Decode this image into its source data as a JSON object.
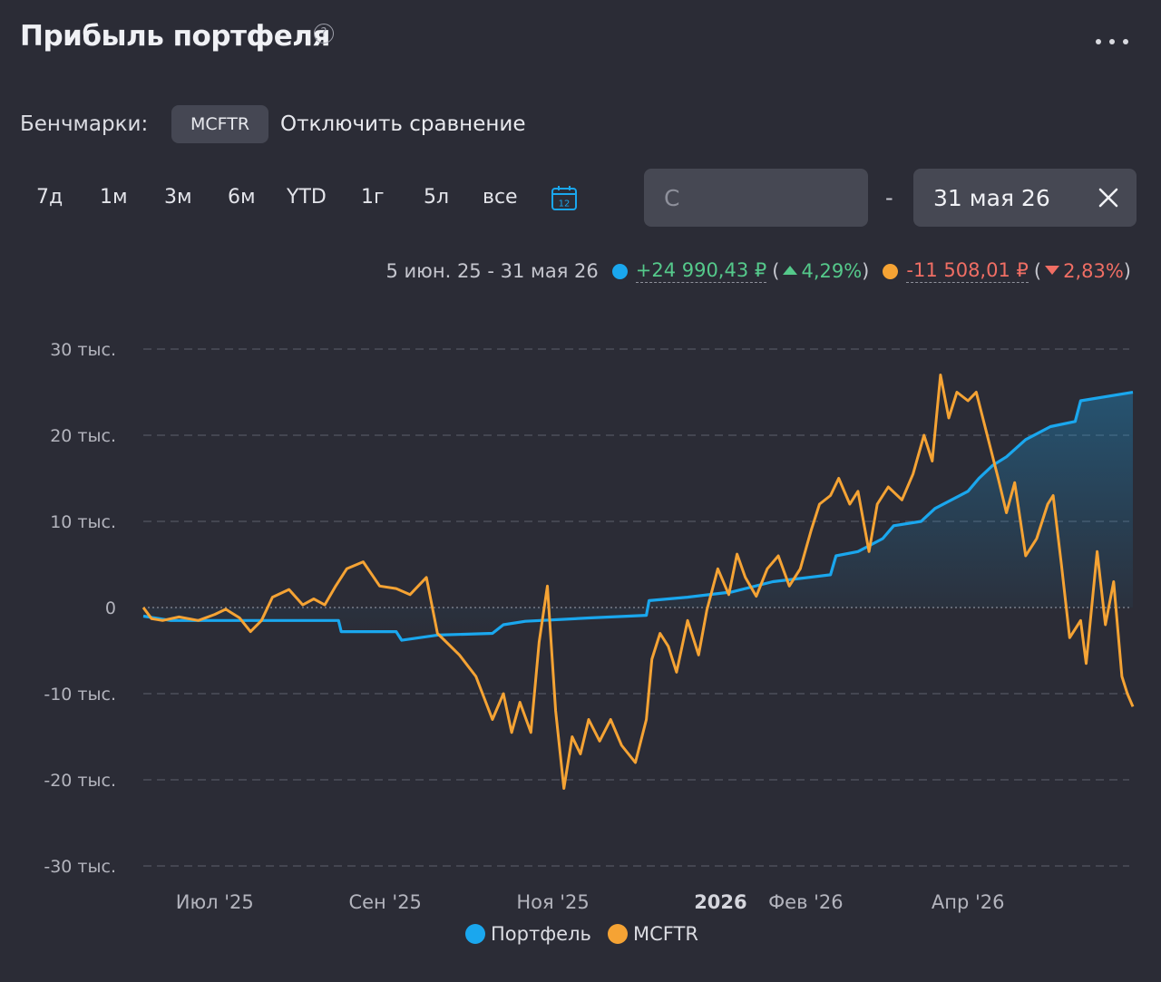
{
  "header": {
    "title": "Прибыль портфеля",
    "help_glyph": "?"
  },
  "benchmarks": {
    "label": "Бенчмарки:",
    "chip": "MCFTR",
    "disable": "Отключить сравнение"
  },
  "periods": [
    "7д",
    "1м",
    "3м",
    "6м",
    "YTD",
    "1г",
    "5л",
    "все"
  ],
  "calendar_day": "12",
  "date_range": {
    "from_placeholder": "С",
    "from_value": "",
    "dash": "-",
    "to_value": "31 мая 26"
  },
  "summary": {
    "period": "5 июн. 25 - 31 мая 26",
    "portfolio": {
      "value": "+24 990,43 ₽",
      "pct": "4,29%"
    },
    "benchmark": {
      "value": "-11 508,01 ₽",
      "pct": "2,83%"
    },
    "open_paren": "(",
    "close_paren": ")"
  },
  "colors": {
    "portfolio": "#1aa7ee",
    "benchmark": "#f5a334",
    "positive": "#55c98b",
    "negative": "#f06e64",
    "background": "#2b2c36"
  },
  "chart_data": {
    "type": "line",
    "y_ticks": [
      30000,
      20000,
      10000,
      0,
      -10000,
      -20000,
      -30000
    ],
    "y_tick_labels": [
      "30 тыс.",
      "20 тыс.",
      "10 тыс.",
      "0",
      "-10 тыс.",
      "-20 тыс.",
      "-30 тыс."
    ],
    "ylim": [
      -30000,
      30000
    ],
    "xlim": [
      "2025-06-05",
      "2026-05-31"
    ],
    "x_ticks": [
      {
        "date": "2025-07-01",
        "label": "Июл '25",
        "bold": false
      },
      {
        "date": "2025-09-01",
        "label": "Сен '25",
        "bold": false
      },
      {
        "date": "2025-11-01",
        "label": "Ноя '25",
        "bold": false
      },
      {
        "date": "2026-01-01",
        "label": "2026",
        "bold": true
      },
      {
        "date": "2026-02-01",
        "label": "Фев '26",
        "bold": false
      },
      {
        "date": "2026-04-01",
        "label": "Апр '26",
        "bold": false
      }
    ],
    "legend": {
      "placement": "bottom"
    },
    "series": [
      {
        "name": "Портфель",
        "points": [
          [
            "2025-06-05",
            -1000
          ],
          [
            "2025-06-15",
            -1500
          ],
          [
            "2025-07-15",
            -1500
          ],
          [
            "2025-08-15",
            -1500
          ],
          [
            "2025-08-16",
            -2800
          ],
          [
            "2025-09-05",
            -2800
          ],
          [
            "2025-09-07",
            -3800
          ],
          [
            "2025-09-20",
            -3200
          ],
          [
            "2025-10-10",
            -3000
          ],
          [
            "2025-10-14",
            -2000
          ],
          [
            "2025-10-22",
            -1600
          ],
          [
            "2025-11-15",
            -1200
          ],
          [
            "2025-12-05",
            -900
          ],
          [
            "2025-12-06",
            800
          ],
          [
            "2025-12-20",
            1200
          ],
          [
            "2026-01-05",
            1800
          ],
          [
            "2026-01-20",
            3000
          ],
          [
            "2026-02-10",
            3800
          ],
          [
            "2026-02-12",
            6000
          ],
          [
            "2026-02-20",
            6500
          ],
          [
            "2026-03-01",
            8000
          ],
          [
            "2026-03-05",
            9500
          ],
          [
            "2026-03-15",
            10000
          ],
          [
            "2026-03-20",
            11500
          ],
          [
            "2026-04-01",
            13500
          ],
          [
            "2026-04-05",
            15000
          ],
          [
            "2026-04-10",
            16500
          ],
          [
            "2026-04-15",
            17500
          ],
          [
            "2026-04-22",
            19500
          ],
          [
            "2026-05-01",
            21000
          ],
          [
            "2026-05-10",
            21600
          ],
          [
            "2026-05-12",
            24000
          ],
          [
            "2026-05-31",
            24990
          ]
        ]
      },
      {
        "name": "MCFTR",
        "points": [
          [
            "2025-06-05",
            0
          ],
          [
            "2025-06-08",
            -1300
          ],
          [
            "2025-06-12",
            -1500
          ],
          [
            "2025-06-18",
            -1100
          ],
          [
            "2025-06-25",
            -1500
          ],
          [
            "2025-07-01",
            -800
          ],
          [
            "2025-07-05",
            -200
          ],
          [
            "2025-07-10",
            -1200
          ],
          [
            "2025-07-14",
            -2800
          ],
          [
            "2025-07-18",
            -1500
          ],
          [
            "2025-07-22",
            1200
          ],
          [
            "2025-07-28",
            2100
          ],
          [
            "2025-08-02",
            300
          ],
          [
            "2025-08-06",
            1000
          ],
          [
            "2025-08-10",
            300
          ],
          [
            "2025-08-14",
            2500
          ],
          [
            "2025-08-18",
            4500
          ],
          [
            "2025-08-24",
            5300
          ],
          [
            "2025-08-30",
            2500
          ],
          [
            "2025-09-05",
            2200
          ],
          [
            "2025-09-10",
            1500
          ],
          [
            "2025-09-16",
            3500
          ],
          [
            "2025-09-20",
            -3000
          ],
          [
            "2025-09-28",
            -5500
          ],
          [
            "2025-10-04",
            -8000
          ],
          [
            "2025-10-10",
            -13000
          ],
          [
            "2025-10-14",
            -10000
          ],
          [
            "2025-10-17",
            -14500
          ],
          [
            "2025-10-20",
            -11000
          ],
          [
            "2025-10-24",
            -14500
          ],
          [
            "2025-10-27",
            -4000
          ],
          [
            "2025-10-30",
            2500
          ],
          [
            "2025-11-02",
            -12000
          ],
          [
            "2025-11-05",
            -21000
          ],
          [
            "2025-11-08",
            -15000
          ],
          [
            "2025-11-11",
            -17000
          ],
          [
            "2025-11-14",
            -13000
          ],
          [
            "2025-11-18",
            -15500
          ],
          [
            "2025-11-22",
            -13000
          ],
          [
            "2025-11-26",
            -16000
          ],
          [
            "2025-12-01",
            -18000
          ],
          [
            "2025-12-05",
            -13000
          ],
          [
            "2025-12-07",
            -6000
          ],
          [
            "2025-12-10",
            -3000
          ],
          [
            "2025-12-13",
            -4500
          ],
          [
            "2025-12-16",
            -7500
          ],
          [
            "2025-12-20",
            -1500
          ],
          [
            "2025-12-24",
            -5500
          ],
          [
            "2025-12-27",
            -300
          ],
          [
            "2025-12-31",
            4500
          ],
          [
            "2026-01-04",
            1500
          ],
          [
            "2026-01-07",
            6200
          ],
          [
            "2026-01-10",
            3500
          ],
          [
            "2026-01-14",
            1300
          ],
          [
            "2026-01-18",
            4500
          ],
          [
            "2026-01-22",
            6000
          ],
          [
            "2026-01-26",
            2500
          ],
          [
            "2026-01-30",
            4500
          ],
          [
            "2026-02-03",
            9000
          ],
          [
            "2026-02-06",
            12000
          ],
          [
            "2026-02-10",
            13000
          ],
          [
            "2026-02-13",
            15000
          ],
          [
            "2026-02-17",
            12000
          ],
          [
            "2026-02-20",
            13500
          ],
          [
            "2026-02-24",
            6500
          ],
          [
            "2026-02-27",
            12000
          ],
          [
            "2026-03-03",
            14000
          ],
          [
            "2026-03-08",
            12500
          ],
          [
            "2026-03-12",
            15500
          ],
          [
            "2026-03-16",
            20000
          ],
          [
            "2026-03-19",
            17000
          ],
          [
            "2026-03-22",
            27000
          ],
          [
            "2026-03-25",
            22000
          ],
          [
            "2026-03-28",
            25000
          ],
          [
            "2026-04-01",
            24000
          ],
          [
            "2026-04-04",
            25000
          ],
          [
            "2026-04-08",
            20000
          ],
          [
            "2026-04-12",
            15000
          ],
          [
            "2026-04-15",
            11000
          ],
          [
            "2026-04-18",
            14500
          ],
          [
            "2026-04-22",
            6000
          ],
          [
            "2026-04-26",
            8000
          ],
          [
            "2026-04-30",
            12000
          ],
          [
            "2026-05-02",
            13000
          ],
          [
            "2026-05-05",
            5000
          ],
          [
            "2026-05-08",
            -3500
          ],
          [
            "2026-05-12",
            -1500
          ],
          [
            "2026-05-14",
            -6500
          ],
          [
            "2026-05-18",
            6500
          ],
          [
            "2026-05-21",
            -2000
          ],
          [
            "2026-05-24",
            3000
          ],
          [
            "2026-05-27",
            -8000
          ],
          [
            "2026-05-29",
            -10000
          ],
          [
            "2026-05-31",
            -11508
          ]
        ]
      }
    ]
  }
}
